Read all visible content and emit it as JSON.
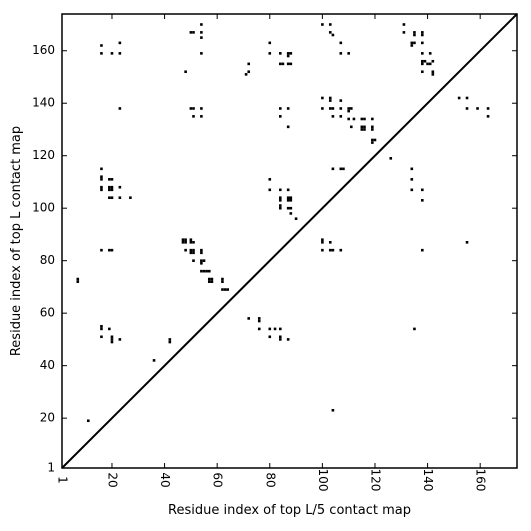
{
  "chart_data": {
    "type": "scatter",
    "marker": "square",
    "xlabel": "Residue index of top L/5 contact map",
    "ylabel": "Residue index of top L contact map",
    "xlim": [
      1,
      174
    ],
    "ylim": [
      1,
      174
    ],
    "xticks": [
      1,
      20,
      40,
      60,
      80,
      100,
      120,
      140,
      160
    ],
    "yticks": [
      1,
      20,
      40,
      60,
      80,
      100,
      120,
      140,
      160
    ],
    "grid": false,
    "diagonal": {
      "from": [
        1,
        1
      ],
      "to": [
        174,
        174
      ],
      "color": "#000000"
    },
    "marker_color": "#000000",
    "points": [
      [
        7,
        73
      ],
      [
        7,
        72
      ],
      [
        11,
        19
      ],
      [
        16,
        162
      ],
      [
        16,
        159
      ],
      [
        16,
        115
      ],
      [
        16,
        112
      ],
      [
        16,
        111
      ],
      [
        16,
        108
      ],
      [
        16,
        107
      ],
      [
        16,
        84
      ],
      [
        16,
        55
      ],
      [
        16,
        54
      ],
      [
        16,
        51
      ],
      [
        19,
        111
      ],
      [
        20,
        111
      ],
      [
        19,
        108
      ],
      [
        20,
        108
      ],
      [
        19,
        107
      ],
      [
        20,
        107
      ],
      [
        19,
        104
      ],
      [
        20,
        104
      ],
      [
        19,
        84
      ],
      [
        20,
        84
      ],
      [
        19,
        54
      ],
      [
        20,
        51
      ],
      [
        20,
        50
      ],
      [
        20,
        49
      ],
      [
        20,
        159
      ],
      [
        23,
        163
      ],
      [
        23,
        159
      ],
      [
        23,
        138
      ],
      [
        23,
        108
      ],
      [
        23,
        104
      ],
      [
        23,
        50
      ],
      [
        27,
        104
      ],
      [
        36,
        42
      ],
      [
        42,
        50
      ],
      [
        42,
        49
      ],
      [
        48,
        152
      ],
      [
        47,
        88
      ],
      [
        48,
        88
      ],
      [
        47,
        87
      ],
      [
        48,
        87
      ],
      [
        50,
        88
      ],
      [
        50,
        87
      ],
      [
        51,
        87
      ],
      [
        48,
        84
      ],
      [
        50,
        84
      ],
      [
        51,
        84
      ],
      [
        50,
        83
      ],
      [
        51,
        83
      ],
      [
        51,
        80
      ],
      [
        50,
        167
      ],
      [
        51,
        167
      ],
      [
        50,
        138
      ],
      [
        51,
        138
      ],
      [
        51,
        135
      ],
      [
        54,
        170
      ],
      [
        54,
        167
      ],
      [
        54,
        165
      ],
      [
        54,
        159
      ],
      [
        54,
        138
      ],
      [
        54,
        135
      ],
      [
        54,
        84
      ],
      [
        54,
        83
      ],
      [
        54,
        80
      ],
      [
        55,
        80
      ],
      [
        54,
        79
      ],
      [
        54,
        76
      ],
      [
        55,
        76
      ],
      [
        56,
        76
      ],
      [
        57,
        76
      ],
      [
        57,
        73
      ],
      [
        58,
        73
      ],
      [
        57,
        72
      ],
      [
        58,
        72
      ],
      [
        62,
        73
      ],
      [
        62,
        72
      ],
      [
        62,
        69
      ],
      [
        63,
        69
      ],
      [
        64,
        69
      ],
      [
        71,
        151
      ],
      [
        72,
        152
      ],
      [
        72,
        155
      ],
      [
        72,
        58
      ],
      [
        76,
        58
      ],
      [
        76,
        57
      ],
      [
        76,
        54
      ],
      [
        80,
        163
      ],
      [
        80,
        159
      ],
      [
        80,
        111
      ],
      [
        80,
        107
      ],
      [
        80,
        54
      ],
      [
        82,
        54
      ],
      [
        80,
        51
      ],
      [
        84,
        159
      ],
      [
        84,
        155
      ],
      [
        85,
        155
      ],
      [
        84,
        138
      ],
      [
        84,
        135
      ],
      [
        84,
        107
      ],
      [
        84,
        104
      ],
      [
        84,
        103
      ],
      [
        84,
        101
      ],
      [
        84,
        100
      ],
      [
        84,
        54
      ],
      [
        84,
        51
      ],
      [
        84,
        50
      ],
      [
        87,
        159
      ],
      [
        88,
        159
      ],
      [
        87,
        158
      ],
      [
        87,
        155
      ],
      [
        88,
        155
      ],
      [
        87,
        138
      ],
      [
        87,
        131
      ],
      [
        87,
        107
      ],
      [
        87,
        104
      ],
      [
        88,
        104
      ],
      [
        87,
        103
      ],
      [
        88,
        103
      ],
      [
        87,
        100
      ],
      [
        88,
        100
      ],
      [
        88,
        98
      ],
      [
        90,
        96
      ],
      [
        87,
        50
      ],
      [
        100,
        170
      ],
      [
        100,
        142
      ],
      [
        100,
        138
      ],
      [
        100,
        88
      ],
      [
        100,
        87
      ],
      [
        100,
        84
      ],
      [
        103,
        170
      ],
      [
        103,
        167
      ],
      [
        104,
        166
      ],
      [
        103,
        142
      ],
      [
        103,
        141
      ],
      [
        103,
        138
      ],
      [
        104,
        138
      ],
      [
        103,
        87
      ],
      [
        103,
        84
      ],
      [
        104,
        84
      ],
      [
        104,
        135
      ],
      [
        104,
        115
      ],
      [
        104,
        23
      ],
      [
        107,
        163
      ],
      [
        107,
        159
      ],
      [
        107,
        141
      ],
      [
        107,
        138
      ],
      [
        107,
        135
      ],
      [
        107,
        115
      ],
      [
        108,
        115
      ],
      [
        107,
        84
      ],
      [
        110,
        159
      ],
      [
        110,
        138
      ],
      [
        111,
        138
      ],
      [
        110,
        137
      ],
      [
        110,
        134
      ],
      [
        111,
        131
      ],
      [
        112,
        134
      ],
      [
        115,
        134
      ],
      [
        115,
        131
      ],
      [
        116,
        131
      ],
      [
        115,
        130
      ],
      [
        116,
        130
      ],
      [
        116,
        134
      ],
      [
        119,
        134
      ],
      [
        119,
        131
      ],
      [
        119,
        130
      ],
      [
        119,
        126
      ],
      [
        119,
        125
      ],
      [
        120,
        126
      ],
      [
        126,
        119
      ],
      [
        131,
        170
      ],
      [
        131,
        167
      ],
      [
        134,
        163
      ],
      [
        135,
        163
      ],
      [
        134,
        162
      ],
      [
        134,
        115
      ],
      [
        134,
        111
      ],
      [
        134,
        107
      ],
      [
        135,
        54
      ],
      [
        135,
        166
      ],
      [
        135,
        167
      ],
      [
        138,
        167
      ],
      [
        138,
        166
      ],
      [
        138,
        163
      ],
      [
        138,
        159
      ],
      [
        138,
        156
      ],
      [
        139,
        156
      ],
      [
        138,
        155
      ],
      [
        140,
        155
      ],
      [
        141,
        155
      ],
      [
        142,
        156
      ],
      [
        138,
        152
      ],
      [
        142,
        152
      ],
      [
        142,
        151
      ],
      [
        141,
        159
      ],
      [
        138,
        107
      ],
      [
        138,
        103
      ],
      [
        138,
        84
      ],
      [
        152,
        142
      ],
      [
        155,
        142
      ],
      [
        155,
        138
      ],
      [
        155,
        87
      ],
      [
        159,
        138
      ],
      [
        163,
        138
      ],
      [
        163,
        135
      ]
    ]
  }
}
